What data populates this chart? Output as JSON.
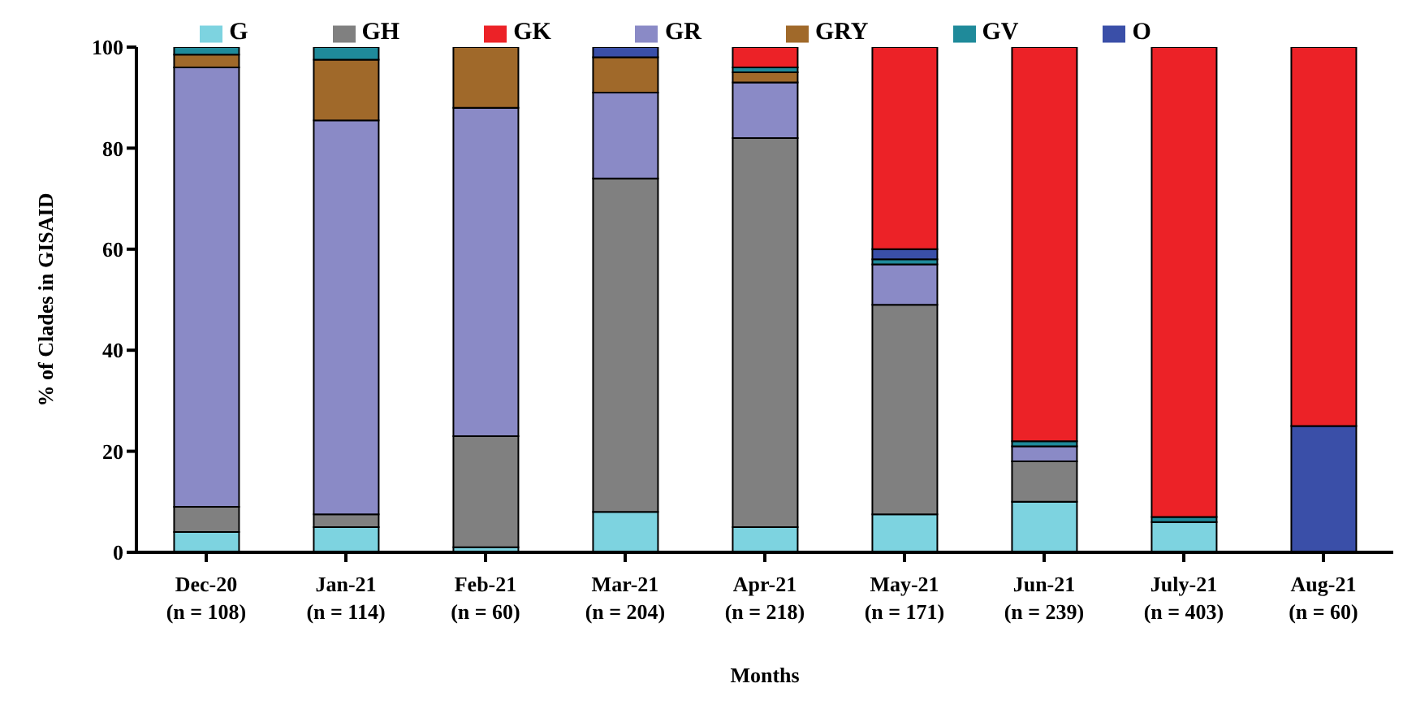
{
  "chart_data": {
    "type": "bar",
    "stacked": true,
    "xlabel": "Months",
    "ylabel": "% of Clades in GISAID",
    "categories": [
      "Dec-20\n(n = 108)",
      "Jan-21\n(n = 114)",
      "Feb-21\n(n = 60)",
      "Mar-21\n(n = 204)",
      "Apr-21\n(n = 218)",
      "May-21\n(n = 171)",
      "Jun-21\n(n = 239)",
      "July-21\n(n = 403)",
      "Aug-21\n(n = 60)"
    ],
    "series": [
      {
        "name": "G",
        "color": "#7dd3e0",
        "values": [
          4,
          5,
          1,
          8,
          5,
          7.5,
          10,
          6,
          0
        ]
      },
      {
        "name": "GH",
        "color": "#808080",
        "values": [
          5,
          2.5,
          22,
          66,
          77,
          41.5,
          8,
          0,
          0
        ]
      },
      {
        "name": "GR",
        "color": "#8a8ac6",
        "values": [
          87,
          78,
          65,
          17,
          11,
          8,
          3,
          0,
          0
        ]
      },
      {
        "name": "GRY",
        "color": "#a0692a",
        "values": [
          2.5,
          12,
          12,
          7,
          2,
          0,
          0,
          0,
          0
        ]
      },
      {
        "name": "GV",
        "color": "#1f8a9a",
        "values": [
          1.5,
          2.5,
          0,
          0,
          1,
          1,
          1,
          1,
          0
        ]
      },
      {
        "name": "O",
        "color": "#3a4fa8",
        "values": [
          0,
          0,
          0,
          2,
          0,
          2,
          0,
          0,
          25
        ]
      },
      {
        "name": "GK",
        "color": "#ec2227",
        "values": [
          0,
          0,
          0,
          0,
          4,
          40,
          78,
          93,
          75
        ]
      }
    ],
    "ylim": [
      0,
      100
    ],
    "yticks": [
      0,
      20,
      40,
      60,
      80,
      100
    ],
    "grid": false,
    "legend": "top"
  }
}
